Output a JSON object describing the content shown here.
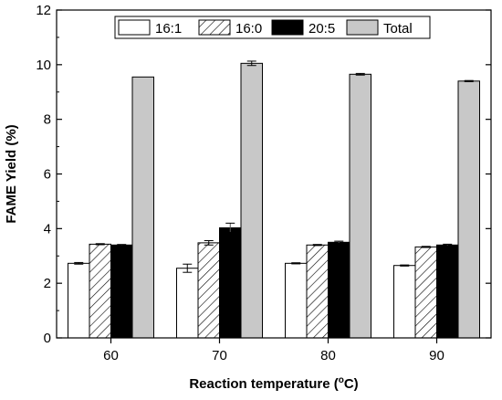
{
  "chart_data": {
    "type": "bar",
    "title": "",
    "xlabel": "Reaction temperature (",
    "xlabel_sup": "o",
    "xlabel_suffix": "C)",
    "ylabel": "FAME Yield (%)",
    "categories": [
      "60",
      "70",
      "80",
      "90"
    ],
    "ylim": [
      0,
      12
    ],
    "yticks": [
      0,
      2,
      4,
      6,
      8,
      10,
      12
    ],
    "grid": false,
    "legend_position": "top-right",
    "series": [
      {
        "name": "16:1",
        "values": [
          2.73,
          2.55,
          2.73,
          2.65
        ],
        "errors": [
          0.03,
          0.15,
          0.02,
          0.02
        ],
        "fill": "#ffffff",
        "pattern": "none"
      },
      {
        "name": "16:0",
        "values": [
          3.43,
          3.48,
          3.4,
          3.33
        ],
        "errors": [
          0.02,
          0.08,
          0.02,
          0.02
        ],
        "fill": "#ffffff",
        "pattern": "hatch"
      },
      {
        "name": "20:5",
        "values": [
          3.4,
          4.03,
          3.5,
          3.4
        ],
        "errors": [
          0.02,
          0.17,
          0.04,
          0.03
        ],
        "fill": "#000000",
        "pattern": "none"
      },
      {
        "name": "Total",
        "values": [
          9.55,
          10.05,
          9.65,
          9.4
        ],
        "errors": [
          0.0,
          0.08,
          0.03,
          0.02
        ],
        "fill": "#c8c8c8",
        "pattern": "none"
      }
    ]
  }
}
